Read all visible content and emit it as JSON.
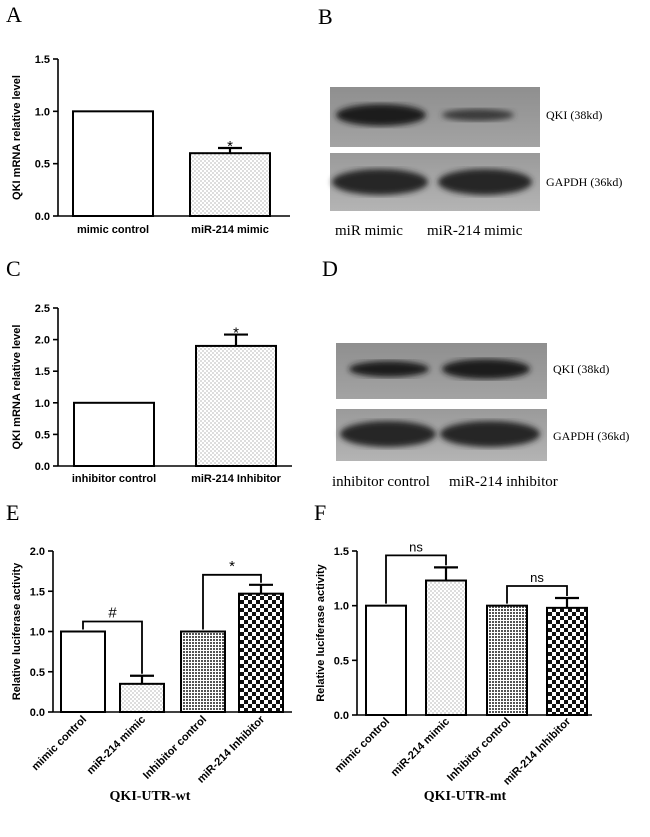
{
  "panels": {
    "A": "A",
    "B": "B",
    "C": "C",
    "D": "D",
    "E": "E",
    "F": "F"
  },
  "chart_data": [
    {
      "id": "A",
      "type": "bar",
      "ylabel": "QKI mRNA relative level",
      "ylim": [
        0,
        1.5
      ],
      "yticks": [
        "0.0",
        "0.5",
        "1.0",
        "1.5"
      ],
      "categories": [
        "mimic control",
        "miR-214 mimic"
      ],
      "values": [
        1.0,
        0.6
      ],
      "errors": [
        0,
        0.05
      ],
      "patterns": [
        "white",
        "dots"
      ],
      "annotations": [
        {
          "text": "*",
          "bar": 1
        }
      ]
    },
    {
      "id": "C",
      "type": "bar",
      "ylabel": "QKI mRNA relative level",
      "ylim": [
        0,
        2.5
      ],
      "yticks": [
        "0.0",
        "0.5",
        "1.0",
        "1.5",
        "2.0",
        "2.5"
      ],
      "categories": [
        "inhibitor control",
        "miR-214 Inhibitor"
      ],
      "values": [
        1.0,
        1.9
      ],
      "errors": [
        0,
        0.18
      ],
      "patterns": [
        "white",
        "dots"
      ],
      "annotations": [
        {
          "text": "*",
          "bar": 1
        }
      ]
    },
    {
      "id": "E",
      "type": "bar",
      "title": "QKI-UTR-wt",
      "ylabel": "Relative luciferase activity",
      "ylim": [
        0,
        2.0
      ],
      "yticks": [
        "0.0",
        "0.5",
        "1.0",
        "1.5",
        "2.0"
      ],
      "categories": [
        "mimic control",
        "miR-214 mimic",
        "Inhibitor control",
        "miR-214 Inhibitor"
      ],
      "values": [
        1.0,
        0.35,
        1.0,
        1.47
      ],
      "errors": [
        0,
        0.1,
        0,
        0.11
      ],
      "patterns": [
        "white",
        "dots",
        "grid",
        "checker"
      ],
      "brackets": [
        {
          "from": 0,
          "to": 1,
          "text": "#"
        },
        {
          "from": 2,
          "to": 3,
          "text": "*"
        }
      ]
    },
    {
      "id": "F",
      "type": "bar",
      "title": "QKI-UTR-mt",
      "ylabel": "Relative luciferase activity",
      "ylim": [
        0,
        1.5
      ],
      "yticks": [
        "0.0",
        "0.5",
        "1.0",
        "1.5"
      ],
      "categories": [
        "mimic control",
        "miR-214 mimic",
        "Inhibitor control",
        "miR-214 Inhibitor"
      ],
      "values": [
        1.0,
        1.23,
        1.0,
        0.98
      ],
      "errors": [
        0,
        0.12,
        0,
        0.09
      ],
      "patterns": [
        "white",
        "dots",
        "grid",
        "checker"
      ],
      "brackets": [
        {
          "from": 0,
          "to": 1,
          "text": "ns"
        },
        {
          "from": 2,
          "to": 3,
          "text": "ns"
        }
      ]
    }
  ],
  "blots": {
    "B": {
      "bands": [
        {
          "label": "QKI (38kd)"
        },
        {
          "label": "GAPDH (36kd)"
        }
      ],
      "lanes": [
        "miR mimic",
        "miR-214 mimic"
      ]
    },
    "D": {
      "bands": [
        {
          "label": "QKI (38kd)"
        },
        {
          "label": "GAPDH (36kd)"
        }
      ],
      "lanes": [
        "inhibitor control",
        "miR-214 inhibitor"
      ]
    }
  }
}
